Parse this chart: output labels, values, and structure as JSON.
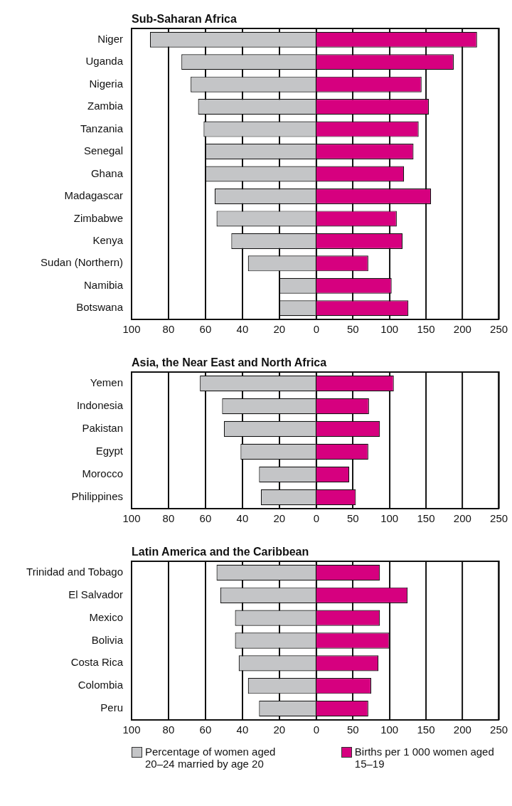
{
  "chart_data": [
    {
      "type": "bar",
      "title": "Sub-Saharan Africa",
      "orientation": "horizontal",
      "grid": "x",
      "categories": [
        "Niger",
        "Uganda",
        "Nigeria",
        "Zambia",
        "Tanzania",
        "Senegal",
        "Ghana",
        "Madagascar",
        "Zimbabwe",
        "Kenya",
        "Sudan (Northern)",
        "Namibia",
        "Botswana"
      ],
      "series": [
        {
          "color": "#c4c5c7",
          "values": [
            90,
            73,
            68,
            64,
            61,
            60,
            60,
            55,
            54,
            46,
            37,
            20,
            20
          ]
        }
      ],
      "xlim": [
        100,
        0
      ],
      "xticks": [
        100,
        80,
        60,
        40,
        20,
        0
      ]
    },
    {
      "type": "bar",
      "orientation": "horizontal",
      "grid": "x",
      "tick_labels": "x",
      "series": [
        {
          "color": "#d6007f",
          "values": [
            220,
            188,
            144,
            154,
            140,
            133,
            120,
            157,
            110,
            118,
            71,
            103,
            126
          ]
        }
      ],
      "xlim": [
        0,
        250
      ],
      "xticks": [
        50,
        100,
        150,
        200,
        250
      ]
    },
    {
      "type": "bar",
      "title": "Asia, the Near East and North Africa",
      "orientation": "horizontal",
      "grid": "x",
      "categories": [
        "Yemen",
        "Indonesia",
        "Pakistan",
        "Egypt",
        "Morocco",
        "Philippines"
      ],
      "series": [
        {
          "color": "#c4c5c7",
          "values": [
            63,
            51,
            50,
            41,
            31,
            30
          ]
        }
      ],
      "xlim": [
        100,
        0
      ],
      "xticks": [
        100,
        80,
        60,
        40,
        20,
        0
      ]
    },
    {
      "type": "bar",
      "orientation": "horizontal",
      "grid": "x",
      "tick_labels": "x",
      "series": [
        {
          "color": "#d6007f",
          "values": [
            106,
            72,
            87,
            71,
            45,
            54
          ]
        }
      ],
      "xlim": [
        0,
        250
      ],
      "xticks": [
        50,
        100,
        150,
        200,
        250
      ]
    },
    {
      "type": "bar",
      "title": "Latin America and the Caribbean",
      "orientation": "horizontal",
      "grid": "x",
      "legend": "bottom",
      "categories": [
        "Trinidad and Tobago",
        "El Salvador",
        "Mexico",
        "Bolivia",
        "Costa Rica",
        "Colombia",
        "Peru"
      ],
      "series": [
        {
          "name": "Percentage of women aged 20–24 married by age 20",
          "color": "#c4c5c7",
          "values": [
            54,
            52,
            44,
            44,
            42,
            37,
            31
          ]
        }
      ],
      "xlim": [
        100,
        0
      ],
      "xticks": [
        100,
        80,
        60,
        40,
        20,
        0
      ]
    },
    {
      "type": "bar",
      "orientation": "horizontal",
      "grid": "x",
      "tick_labels": "x",
      "legend": "bottom",
      "series": [
        {
          "name": "Births per 1 000 women aged 15–19",
          "color": "#d6007f",
          "values": [
            87,
            125,
            87,
            100,
            85,
            75,
            71
          ]
        }
      ],
      "xlim": [
        0,
        250
      ],
      "xticks": [
        50,
        100,
        150,
        200,
        250
      ]
    }
  ]
}
